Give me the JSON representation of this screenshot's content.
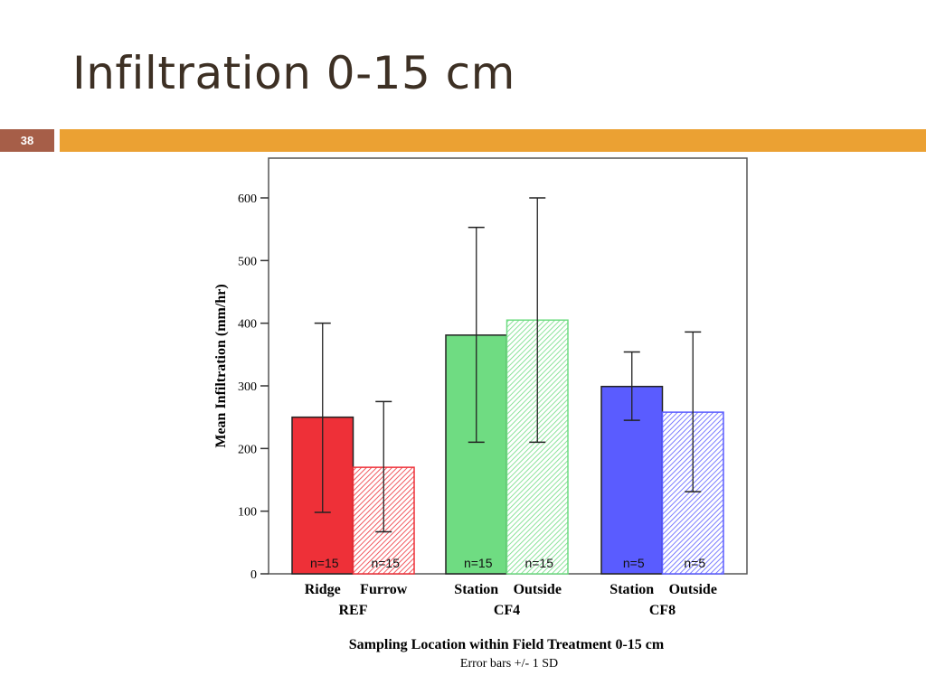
{
  "slide": {
    "title": "Infiltration 0-15 cm",
    "number": "38"
  },
  "chart_data": {
    "type": "bar",
    "title": "",
    "ylabel": "Mean Infiltration (mm/hr)",
    "xlabel": "Sampling Location within Field Treatment  0-15 cm",
    "note": "Error bars +/- 1 SD",
    "ylim": [
      0,
      660
    ],
    "yticks": [
      0,
      100,
      200,
      300,
      400,
      500,
      600
    ],
    "groups": [
      {
        "name": "REF",
        "color": "#ee3038",
        "bars": [
          {
            "label": "Ridge",
            "value": 250,
            "err_low": 98,
            "err_high": 400,
            "n": "n=15",
            "hatched": false
          },
          {
            "label": "Furrow",
            "value": 170,
            "err_low": 67,
            "err_high": 275,
            "n": "n=15",
            "hatched": true
          }
        ]
      },
      {
        "name": "CF4",
        "color": "#6fdc82",
        "bars": [
          {
            "label": "Station",
            "value": 381,
            "err_low": 210,
            "err_high": 553,
            "n": "n=15",
            "hatched": false
          },
          {
            "label": "Outside",
            "value": 405,
            "err_low": 210,
            "err_high": 600,
            "n": "n=15",
            "hatched": true
          }
        ]
      },
      {
        "name": "CF8",
        "color": "#5a5cff",
        "bars": [
          {
            "label": "Station",
            "value": 299,
            "err_low": 245,
            "err_high": 354,
            "n": "n=5",
            "hatched": false
          },
          {
            "label": "Outside",
            "value": 258,
            "err_low": 131,
            "err_high": 386,
            "n": "n=5",
            "hatched": true
          }
        ]
      }
    ]
  }
}
